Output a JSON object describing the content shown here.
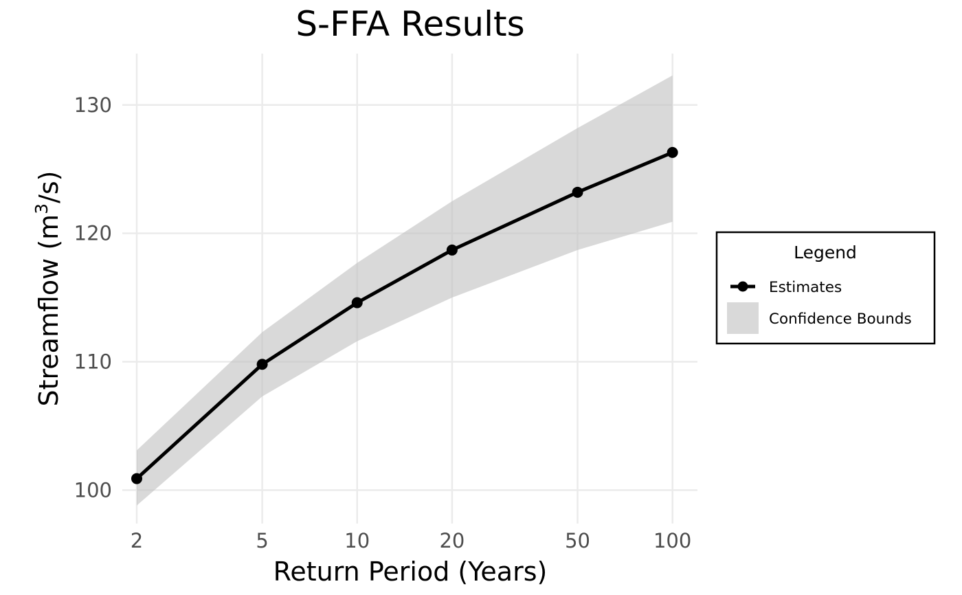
{
  "chart_data": {
    "type": "line",
    "title": "S-FFA Results",
    "xlabel": "Return Period (Years)",
    "ylabel_main": "Streamflow (m",
    "ylabel_sup": "3",
    "ylabel_tail": "/s)",
    "x_scale": "log",
    "x_ticks": [
      2,
      5,
      10,
      20,
      50,
      100
    ],
    "x_tick_labels": [
      "2",
      "5",
      "10",
      "20",
      "50",
      "100"
    ],
    "y_ticks": [
      100,
      110,
      120,
      130
    ],
    "y_tick_labels": [
      "100",
      "110",
      "120",
      "130"
    ],
    "xlim": [
      1.8,
      120
    ],
    "ylim": [
      97.4,
      134
    ],
    "grid": true,
    "legend_position": "right",
    "legend_title": "Legend",
    "series": [
      {
        "name": "Estimates",
        "type": "line+points",
        "color": "#000000",
        "x": [
          2,
          5,
          10,
          20,
          50,
          100
        ],
        "y": [
          100.9,
          109.8,
          114.6,
          118.7,
          123.2,
          126.3
        ]
      },
      {
        "name": "Confidence Bounds",
        "type": "ribbon",
        "color": "#bfbfbf",
        "x": [
          2,
          5,
          10,
          20,
          50,
          100
        ],
        "lower": [
          98.8,
          107.3,
          111.6,
          115.0,
          118.7,
          120.9
        ],
        "upper": [
          103.1,
          112.3,
          117.7,
          122.5,
          128.2,
          132.3
        ]
      }
    ]
  }
}
